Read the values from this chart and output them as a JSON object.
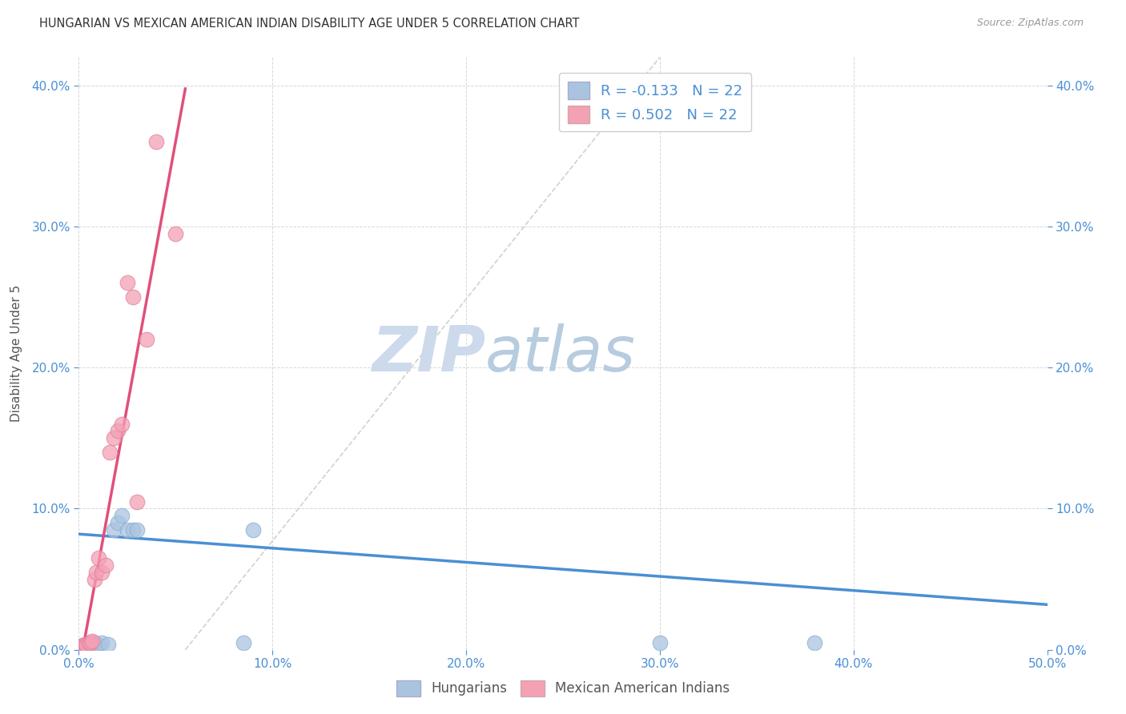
{
  "title": "HUNGARIAN VS MEXICAN AMERICAN INDIAN DISABILITY AGE UNDER 5 CORRELATION CHART",
  "source": "Source: ZipAtlas.com",
  "ylabel": "Disability Age Under 5",
  "xlim": [
    0.0,
    0.5
  ],
  "ylim": [
    0.0,
    0.42
  ],
  "xticks": [
    0.0,
    0.1,
    0.2,
    0.3,
    0.4,
    0.5
  ],
  "yticks": [
    0.0,
    0.1,
    0.2,
    0.3,
    0.4
  ],
  "hungarian_x": [
    0.001,
    0.002,
    0.003,
    0.004,
    0.005,
    0.006,
    0.007,
    0.008,
    0.009,
    0.01,
    0.012,
    0.015,
    0.018,
    0.02,
    0.022,
    0.025,
    0.028,
    0.03,
    0.085,
    0.09,
    0.3,
    0.38
  ],
  "hungarian_y": [
    0.001,
    0.002,
    0.001,
    0.003,
    0.002,
    0.004,
    0.003,
    0.005,
    0.004,
    0.003,
    0.005,
    0.004,
    0.085,
    0.09,
    0.095,
    0.085,
    0.085,
    0.085,
    0.005,
    0.085,
    0.005,
    0.005
  ],
  "mexican_x": [
    0.001,
    0.002,
    0.003,
    0.004,
    0.005,
    0.006,
    0.007,
    0.008,
    0.009,
    0.01,
    0.012,
    0.014,
    0.016,
    0.018,
    0.02,
    0.022,
    0.025,
    0.028,
    0.03,
    0.035,
    0.04,
    0.05
  ],
  "mexican_y": [
    0.002,
    0.003,
    0.004,
    0.003,
    0.005,
    0.005,
    0.006,
    0.05,
    0.055,
    0.065,
    0.055,
    0.06,
    0.14,
    0.15,
    0.155,
    0.16,
    0.26,
    0.25,
    0.105,
    0.22,
    0.36,
    0.295
  ],
  "hungarian_R": -0.133,
  "mexican_R": 0.502,
  "N": 22,
  "hungarian_color": "#aac4e0",
  "mexican_color": "#f4a0b5",
  "hungarian_line_color": "#4a8fd4",
  "mexican_line_color": "#e0507a",
  "diagonal_color": "#cccccc",
  "background_color": "#ffffff",
  "grid_color": "#d8d8d8",
  "watermark_color": "#ccdaeb",
  "tick_color": "#4a8fd4",
  "label_color": "#555555",
  "title_color": "#333333",
  "source_color": "#999999"
}
